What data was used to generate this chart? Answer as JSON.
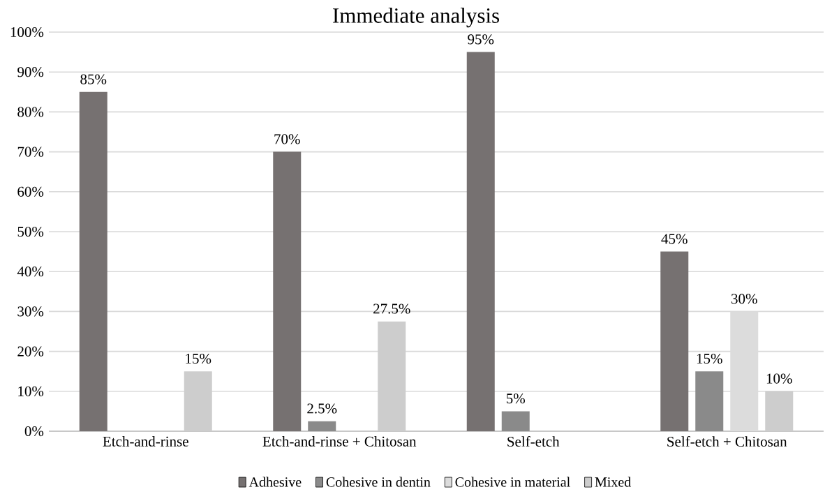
{
  "chart_data": {
    "type": "bar",
    "title": "Immediate analysis",
    "categories": [
      "Etch-and-rinse",
      "Etch-and-rinse + Chitosan",
      "Self-etch",
      "Self-etch + Chitosan"
    ],
    "series": [
      {
        "name": "Adhesive",
        "color": "#767171",
        "values": [
          85,
          70,
          95,
          45
        ],
        "value_labels": [
          "85%",
          "70%",
          "95%",
          "45%"
        ]
      },
      {
        "name": "Cohesive in dentin",
        "color": "#8a8a8a",
        "values": [
          0,
          2.5,
          5,
          15
        ],
        "value_labels": [
          null,
          "2.5%",
          "5%",
          "15%"
        ]
      },
      {
        "name": "Cohesive in material",
        "color": "#dcdcdc",
        "values": [
          0,
          0,
          0,
          30
        ],
        "value_labels": [
          null,
          null,
          null,
          "30%"
        ]
      },
      {
        "name": "Mixed",
        "color": "#cdcdcd",
        "values": [
          15,
          27.5,
          0,
          10
        ],
        "value_labels": [
          "15%",
          "27.5%",
          null,
          "10%"
        ]
      }
    ],
    "ylim": [
      0,
      100
    ],
    "yticks": [
      {
        "value": 0,
        "label": "0%"
      },
      {
        "value": 10,
        "label": "10%"
      },
      {
        "value": 20,
        "label": "20%"
      },
      {
        "value": 30,
        "label": "30%"
      },
      {
        "value": 40,
        "label": "40%"
      },
      {
        "value": 50,
        "label": "50%"
      },
      {
        "value": 60,
        "label": "60%"
      },
      {
        "value": 70,
        "label": "70%"
      },
      {
        "value": 80,
        "label": "80%"
      },
      {
        "value": 90,
        "label": "90%"
      },
      {
        "value": 100,
        "label": "100%"
      }
    ],
    "grid": "y",
    "legend": "bottom"
  }
}
